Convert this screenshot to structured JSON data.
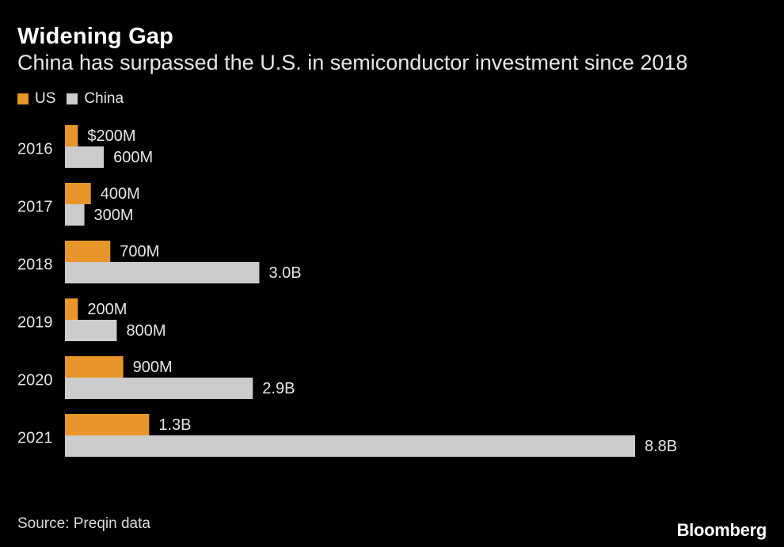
{
  "title": "Widening Gap",
  "subtitle": "China has surpassed the U.S. in semiconductor investment since 2018",
  "source": "Source: Preqin data",
  "brand": "Bloomberg",
  "colors": {
    "us": "#e8962a",
    "china": "#cccccc",
    "background": "#000000"
  },
  "chart_data": {
    "type": "bar",
    "orientation": "horizontal",
    "unit": "USD millions",
    "categories": [
      "2016",
      "2017",
      "2018",
      "2019",
      "2020",
      "2021"
    ],
    "series": [
      {
        "name": "US",
        "values": [
          200,
          400,
          700,
          200,
          900,
          1300
        ],
        "labels": [
          "$200M",
          "400M",
          "700M",
          "200M",
          "900M",
          "1.3B"
        ]
      },
      {
        "name": "China",
        "values": [
          600,
          300,
          3000,
          800,
          2900,
          8800
        ],
        "labels": [
          "600M",
          "300M",
          "3.0B",
          "800M",
          "2.9B",
          "8.8B"
        ]
      }
    ],
    "legend": "top-left",
    "grid": false
  }
}
